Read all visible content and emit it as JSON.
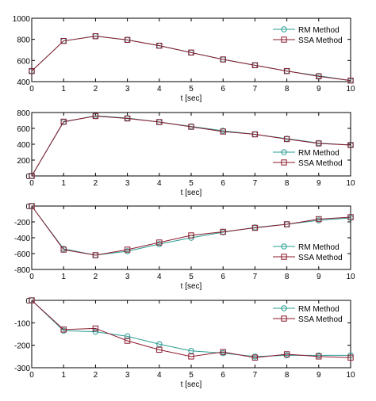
{
  "colors": {
    "rm": "#2a9d92",
    "ssa": "#8b1a2e",
    "axes": "#000000"
  },
  "chart_data": [
    {
      "type": "line",
      "xlabel": "t [sec]",
      "ylabel": "",
      "xlim": [
        0,
        10
      ],
      "ylim": [
        400,
        1000
      ],
      "xticks": [
        "0",
        "1",
        "2",
        "3",
        "4",
        "5",
        "6",
        "7",
        "8",
        "9",
        "10"
      ],
      "yticks": [
        "400",
        "600",
        "800",
        "1000"
      ],
      "legend_position": "top-right",
      "grid": false,
      "x": [
        0,
        1,
        2,
        3,
        4,
        5,
        6,
        7,
        8,
        9,
        10
      ],
      "series": [
        {
          "name": "RM Method",
          "marker": "circle",
          "values": [
            500,
            785,
            830,
            795,
            740,
            675,
            610,
            555,
            500,
            455,
            410
          ]
        },
        {
          "name": "SSA Method",
          "marker": "square",
          "values": [
            500,
            785,
            830,
            795,
            740,
            675,
            610,
            555,
            500,
            450,
            410
          ]
        }
      ]
    },
    {
      "type": "line",
      "xlabel": "t [sec]",
      "ylabel": "",
      "xlim": [
        0,
        10
      ],
      "ylim": [
        0,
        800
      ],
      "xticks": [
        "0",
        "1",
        "2",
        "3",
        "4",
        "5",
        "6",
        "7",
        "8",
        "9",
        "10"
      ],
      "yticks": [
        "0",
        "200",
        "400",
        "600",
        "800"
      ],
      "legend_position": "bottom-right",
      "grid": false,
      "x": [
        0,
        1,
        2,
        3,
        4,
        5,
        6,
        7,
        8,
        9,
        10
      ],
      "series": [
        {
          "name": "RM Method",
          "marker": "circle",
          "values": [
            0,
            680,
            760,
            730,
            680,
            625,
            570,
            525,
            470,
            415,
            390
          ]
        },
        {
          "name": "SSA Method",
          "marker": "square",
          "values": [
            0,
            685,
            755,
            725,
            680,
            620,
            560,
            525,
            465,
            410,
            390
          ]
        }
      ]
    },
    {
      "type": "line",
      "xlabel": "t [sec]",
      "ylabel": "",
      "xlim": [
        0,
        10
      ],
      "ylim": [
        -800,
        0
      ],
      "xticks": [
        "0",
        "1",
        "2",
        "3",
        "4",
        "5",
        "6",
        "7",
        "8",
        "9",
        "10"
      ],
      "yticks": [
        "-800",
        "-600",
        "-400",
        "-200",
        "0"
      ],
      "legend_position": "bottom-right",
      "grid": false,
      "x": [
        0,
        1,
        2,
        3,
        4,
        5,
        6,
        7,
        8,
        9,
        10
      ],
      "series": [
        {
          "name": "RM Method",
          "marker": "circle",
          "values": [
            0,
            -540,
            -620,
            -570,
            -480,
            -400,
            -330,
            -270,
            -230,
            -180,
            -150
          ]
        },
        {
          "name": "SSA Method",
          "marker": "square",
          "values": [
            0,
            -550,
            -620,
            -550,
            -460,
            -370,
            -325,
            -275,
            -230,
            -165,
            -140
          ]
        }
      ]
    },
    {
      "type": "line",
      "xlabel": "t [sec]",
      "ylabel": "",
      "xlim": [
        0,
        10
      ],
      "ylim": [
        -300,
        0
      ],
      "xticks": [
        "0",
        "1",
        "2",
        "3",
        "4",
        "5",
        "6",
        "7",
        "8",
        "9",
        "10"
      ],
      "yticks": [
        "-300",
        "-200",
        "-100",
        "0"
      ],
      "legend_position": "top-right",
      "grid": false,
      "x": [
        0,
        1,
        2,
        3,
        4,
        5,
        6,
        7,
        8,
        9,
        10
      ],
      "series": [
        {
          "name": "RM Method",
          "marker": "circle",
          "values": [
            0,
            -135,
            -140,
            -160,
            -195,
            -225,
            -235,
            -250,
            -245,
            -245,
            -245
          ]
        },
        {
          "name": "SSA Method",
          "marker": "square",
          "values": [
            0,
            -130,
            -125,
            -180,
            -220,
            -250,
            -230,
            -255,
            -240,
            -250,
            -255
          ]
        }
      ]
    }
  ]
}
